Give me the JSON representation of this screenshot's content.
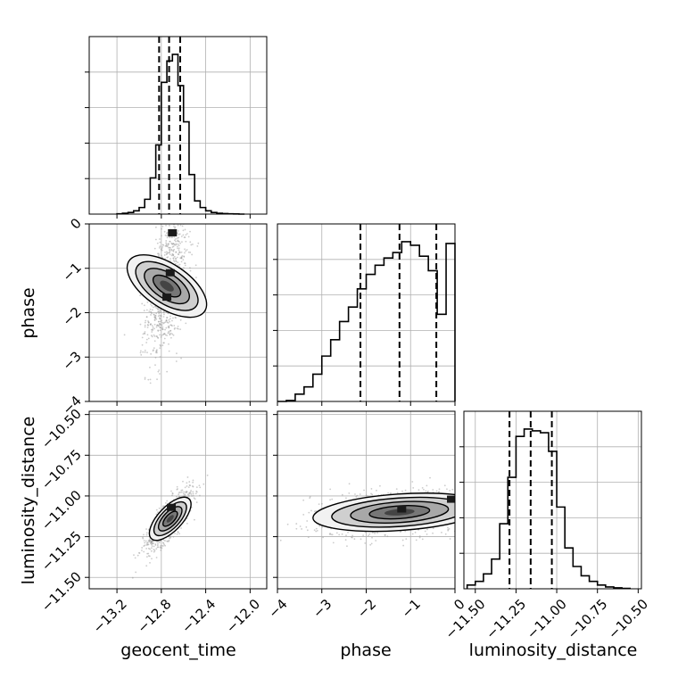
{
  "chart_data": {
    "type": "corner",
    "parameters": [
      "geocent_time",
      "phase",
      "luminosity_distance"
    ],
    "axes": {
      "geocent_time": {
        "label": "geocent_time",
        "range": [
          -13.45,
          -11.85
        ],
        "ticks": [
          -13.2,
          -12.8,
          -12.4,
          -12.0
        ],
        "tick_labels": [
          "−13.2",
          "−12.8",
          "−12.4",
          "−12.0"
        ]
      },
      "phase": {
        "label": "phase",
        "range": [
          -4,
          0
        ],
        "ticks": [
          -4,
          -3,
          -2,
          -1,
          0
        ],
        "tick_labels": [
          "−4",
          "−3",
          "−2",
          "−1",
          "0"
        ]
      },
      "luminosity_distance": {
        "label": "luminosity_distance",
        "range": [
          -11.57,
          -10.48
        ],
        "ticks": [
          -11.5,
          -11.25,
          -11.0,
          -10.75,
          -10.5
        ],
        "tick_labels": [
          "−11.50",
          "−11.25",
          "−11.00",
          "−10.75",
          "−10.50"
        ]
      }
    },
    "grid": true,
    "quantile_lines": {
      "geocent_time": [
        -12.82,
        -12.73,
        -12.63
      ],
      "phase": [
        -2.13,
        -1.25,
        -0.42
      ],
      "luminosity_distance": [
        -11.29,
        -11.16,
        -11.03
      ]
    },
    "histograms": {
      "geocent_time": {
        "edges": [
          -13.2,
          -13.15,
          -13.1,
          -13.05,
          -13.0,
          -12.95,
          -12.9,
          -12.85,
          -12.8,
          -12.75,
          -12.7,
          -12.65,
          -12.6,
          -12.55,
          -12.5,
          -12.45,
          -12.4,
          -12.35,
          -12.3,
          -12.25,
          -12.2,
          -12.15,
          -12.1,
          -12.05
        ],
        "counts": [
          2,
          5,
          10,
          20,
          40,
          90,
          220,
          420,
          800,
          930,
          970,
          780,
          560,
          240,
          80,
          40,
          20,
          10,
          5,
          3,
          2,
          1,
          0
        ]
      },
      "phase": {
        "edges": [
          -4.0,
          -3.8,
          -3.6,
          -3.4,
          -3.2,
          -3.0,
          -2.8,
          -2.6,
          -2.4,
          -2.2,
          -2.0,
          -1.8,
          -1.6,
          -1.4,
          -1.2,
          -1.0,
          -0.8,
          -0.6,
          -0.4,
          -0.2,
          0.0
        ],
        "counts": [
          0,
          5,
          40,
          80,
          150,
          250,
          340,
          440,
          520,
          620,
          700,
          750,
          790,
          820,
          880,
          860,
          800,
          720,
          480,
          870
        ]
      },
      "luminosity_distance": {
        "edges": [
          -11.55,
          -11.5,
          -11.45,
          -11.4,
          -11.35,
          -11.3,
          -11.25,
          -11.2,
          -11.15,
          -11.1,
          -11.05,
          -11.0,
          -10.95,
          -10.9,
          -10.85,
          -10.8,
          -10.75,
          -10.7,
          -10.65,
          -10.6,
          -10.55
        ],
        "counts": [
          20,
          40,
          80,
          160,
          350,
          600,
          820,
          860,
          850,
          840,
          740,
          440,
          220,
          120,
          70,
          40,
          20,
          10,
          5,
          2
        ]
      }
    },
    "density_2d": [
      {
        "x": "geocent_time",
        "y": "phase",
        "center": [
          -12.75,
          -1.4
        ],
        "spread": [
          0.09,
          0.75
        ],
        "corr": 0.45,
        "modes": [
          [
            -12.72,
            -1.1
          ],
          [
            -12.75,
            -1.65
          ],
          [
            -12.7,
            -0.2
          ]
        ]
      },
      {
        "x": "geocent_time",
        "y": "luminosity_distance",
        "center": [
          -12.72,
          -11.14
        ],
        "spread": [
          0.1,
          0.09
        ],
        "corr": 0.8,
        "modes": [
          [
            -12.71,
            -11.07
          ]
        ]
      },
      {
        "x": "phase",
        "y": "luminosity_distance",
        "center": [
          -1.25,
          -11.1
        ],
        "spread": [
          0.95,
          0.07
        ],
        "corr": 0.25,
        "modes": [
          [
            -1.2,
            -11.08
          ],
          [
            -0.08,
            -11.02
          ]
        ]
      }
    ]
  }
}
